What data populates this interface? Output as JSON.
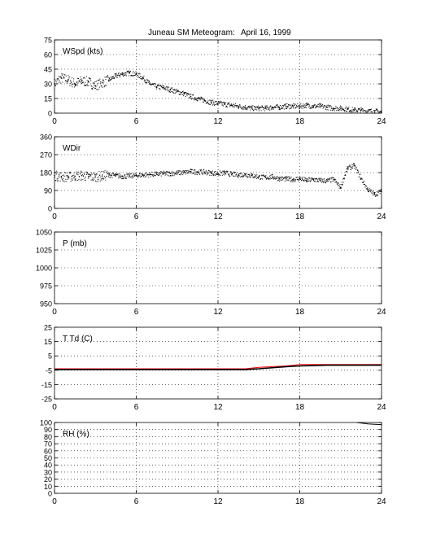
{
  "title": "Juneau SM Meteogram:",
  "date": "April 16, 1999",
  "colors": {
    "axes": "#000000",
    "grid": "#000000",
    "data": "#000000",
    "dewpoint": "#ff0000"
  },
  "chart_data": [
    {
      "type": "scatter",
      "label": "WSpd (kts)",
      "xlim": [
        0,
        24
      ],
      "xticks": [
        0,
        6,
        12,
        18,
        24
      ],
      "ylim": [
        0,
        75
      ],
      "yticks": [
        0,
        15,
        30,
        45,
        60,
        75
      ],
      "grid": true,
      "series": [
        {
          "x": [
            0,
            0.5,
            1,
            1.5,
            2,
            2.5,
            3,
            3.5,
            4,
            4.5,
            5,
            5.5,
            6,
            6.5,
            7,
            7.5,
            8,
            8.5,
            9,
            9.5,
            10,
            10.5,
            11,
            11.5,
            12,
            12.5,
            13,
            13.5,
            14,
            14.5,
            15,
            15.5,
            16,
            16.5,
            17,
            17.5,
            18,
            18.5,
            19,
            19.5,
            20,
            20.5,
            21,
            21.5,
            22,
            22.5,
            23,
            23.5,
            24
          ],
          "y": [
            30,
            36,
            34,
            30,
            33,
            32,
            28,
            31,
            34,
            38,
            40,
            41,
            40,
            36,
            30,
            27,
            26,
            24,
            22,
            20,
            17,
            15,
            13,
            11,
            10,
            9,
            8,
            7,
            6,
            5,
            5,
            5,
            6,
            6,
            7,
            7,
            7,
            8,
            7,
            7,
            6,
            5,
            5,
            4,
            3,
            3,
            2,
            2,
            1
          ]
        }
      ]
    },
    {
      "type": "scatter",
      "label": "WDir",
      "xlim": [
        0,
        24
      ],
      "xticks": [
        0,
        6,
        12,
        18,
        24
      ],
      "ylim": [
        0,
        360
      ],
      "yticks": [
        0,
        90,
        180,
        270,
        360
      ],
      "grid": true,
      "series": [
        {
          "x": [
            0,
            0.5,
            1,
            1.5,
            2,
            2.5,
            3,
            3.5,
            4,
            4.5,
            5,
            5.5,
            6,
            6.5,
            7,
            7.5,
            8,
            8.5,
            9,
            9.5,
            10,
            10.5,
            11,
            11.5,
            12,
            12.5,
            13,
            13.5,
            14,
            14.5,
            15,
            15.5,
            16,
            16.5,
            17,
            17.5,
            18,
            18.5,
            19,
            19.5,
            20,
            20.5,
            21,
            21.5,
            22,
            22.5,
            23,
            23.5,
            24
          ],
          "y": [
            165,
            160,
            158,
            162,
            165,
            160,
            158,
            163,
            168,
            165,
            160,
            163,
            165,
            168,
            170,
            172,
            175,
            175,
            178,
            180,
            185,
            183,
            182,
            178,
            175,
            178,
            172,
            168,
            170,
            165,
            158,
            155,
            158,
            150,
            148,
            145,
            150,
            140,
            145,
            140,
            138,
            145,
            105,
            200,
            215,
            150,
            95,
            70,
            85
          ]
        }
      ]
    },
    {
      "type": "line",
      "label": "P (mb)",
      "xlim": [
        0,
        24
      ],
      "xticks": [
        0,
        6,
        12,
        18,
        24
      ],
      "ylim": [
        950,
        1050
      ],
      "yticks": [
        950,
        975,
        1000,
        1025,
        1050
      ],
      "grid": true,
      "series": []
    },
    {
      "type": "line",
      "label": "T Td (C)",
      "xlim": [
        0,
        24
      ],
      "xticks": [
        0,
        6,
        12,
        18,
        24
      ],
      "ylim": [
        -25,
        25
      ],
      "yticks": [
        -25,
        -15,
        -5,
        5,
        15,
        25
      ],
      "grid": true,
      "series": [
        {
          "name": "T",
          "x": [
            0,
            3,
            6,
            9,
            12,
            14,
            15,
            17,
            18,
            20,
            22,
            24
          ],
          "y": [
            -4,
            -4,
            -4,
            -4,
            -4,
            -4,
            -3,
            -2,
            -1,
            -1,
            -1,
            -1
          ]
        },
        {
          "name": "Td",
          "x": [
            0,
            6,
            12,
            14,
            15,
            17,
            18,
            20,
            22,
            24
          ],
          "y": [
            -4.5,
            -4.5,
            -4.5,
            -4.5,
            -4,
            -2.5,
            -2,
            -1.5,
            -1.5,
            -1.5
          ]
        }
      ]
    },
    {
      "type": "line",
      "label": "RH (%)",
      "xlim": [
        0,
        24
      ],
      "xticks": [
        0,
        6,
        12,
        18,
        24
      ],
      "ylim": [
        0,
        100
      ],
      "yticks": [
        0,
        10,
        20,
        30,
        40,
        50,
        60,
        70,
        80,
        90,
        100
      ],
      "grid": true,
      "series": [
        {
          "x": [
            22.2,
            22.6,
            23,
            23.5,
            24
          ],
          "y": [
            100,
            99,
            98,
            97.5,
            97
          ]
        }
      ]
    }
  ]
}
